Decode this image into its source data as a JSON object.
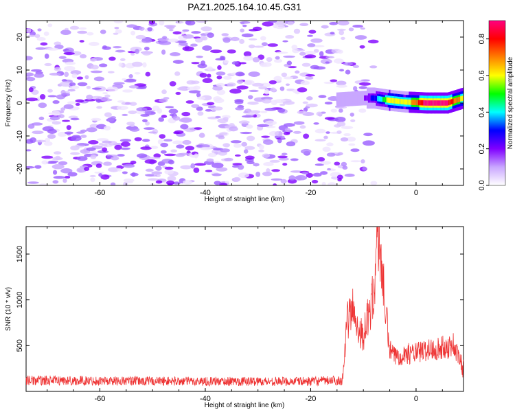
{
  "figure": {
    "title": "PAZ1.2025.164.10.45.G31"
  },
  "chart_data": [
    {
      "type": "heatmap",
      "xlabel": "Height of straight line (km)",
      "ylabel": "Frequency (Hz)",
      "xlim": [
        -74,
        9
      ],
      "ylim": [
        -25,
        25
      ],
      "xticks": [
        "-60",
        "-40",
        "-20",
        "0"
      ],
      "yticks": [
        "20",
        "10",
        "0",
        "-10",
        "-20"
      ],
      "colorbar": {
        "label": "Normalized spectral amplitude",
        "range": [
          0.0,
          0.9
        ],
        "ticks": [
          "0.0",
          "0.2",
          "0.4",
          "0.6",
          "0.8"
        ],
        "colors": [
          "#ffffff",
          "#c9a7ff",
          "#8000ff",
          "#0000ff",
          "#00ffff",
          "#00ff00",
          "#ffff00",
          "#ff8000",
          "#ff0000",
          "#ff0080"
        ]
      },
      "noise_region": {
        "x": [
          -74,
          -8
        ],
        "freq": [
          -25,
          25
        ],
        "level": 0.08
      },
      "signal_band": [
        {
          "x": -15,
          "freq": 1,
          "amp": 0.12
        },
        {
          "x": -10,
          "freq": 1.5,
          "amp": 0.14
        },
        {
          "x": -8,
          "freq": 1.5,
          "amp": 0.3
        },
        {
          "x": -5,
          "freq": 0.8,
          "amp": 0.6
        },
        {
          "x": -2,
          "freq": 0.3,
          "amp": 0.55
        },
        {
          "x": 2,
          "freq": 0.0,
          "amp": 0.9
        },
        {
          "x": 6,
          "freq": 0.0,
          "amp": 0.85
        },
        {
          "x": 9,
          "freq": 1.5,
          "amp": 0.6
        }
      ],
      "grid": false
    },
    {
      "type": "line",
      "xlabel": "Height of straight line (km)",
      "ylabel": "SNR (10 * v/v)",
      "xlim": [
        -74,
        9
      ],
      "ylim": [
        0,
        1800
      ],
      "xticks": [
        "-60",
        "-40",
        "-20",
        "0"
      ],
      "yticks": [
        "500",
        "1000",
        "1500"
      ],
      "line_color": "#ee3333",
      "series": [
        {
          "x": [
            -74,
            -60,
            -40,
            -20,
            -14,
            -13,
            -12,
            -11,
            -10,
            -9,
            -8,
            -7.5,
            -7,
            -6,
            -5,
            -4,
            -2,
            0,
            2,
            4,
            6,
            7,
            8,
            9
          ],
          "values": [
            120,
            115,
            110,
            110,
            120,
            780,
            900,
            700,
            600,
            850,
            1050,
            1650,
            1700,
            1000,
            450,
            380,
            410,
            420,
            450,
            470,
            480,
            520,
            380,
            250
          ]
        }
      ],
      "grid": false
    }
  ]
}
